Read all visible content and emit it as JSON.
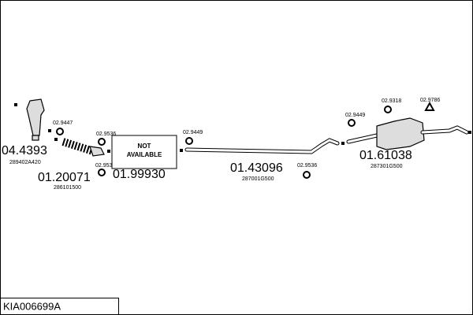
{
  "parts": [
    {
      "code": "04.4393",
      "ref": "289402A420"
    },
    {
      "code": "01.20071",
      "ref": "286101500"
    },
    {
      "code": "01.99930",
      "note": [
        "NOT",
        "AVAILABLE"
      ]
    },
    {
      "code": "01.43096",
      "ref": "287001G500"
    },
    {
      "code": "01.61038",
      "ref": "287301G500"
    }
  ],
  "clamps": [
    "02.9447",
    "02.9536",
    "02.9536",
    "02.9449",
    "02.9536",
    "02.9449",
    "02.9318",
    "02.9786"
  ],
  "footer": {
    "id": "KIA006699A"
  }
}
